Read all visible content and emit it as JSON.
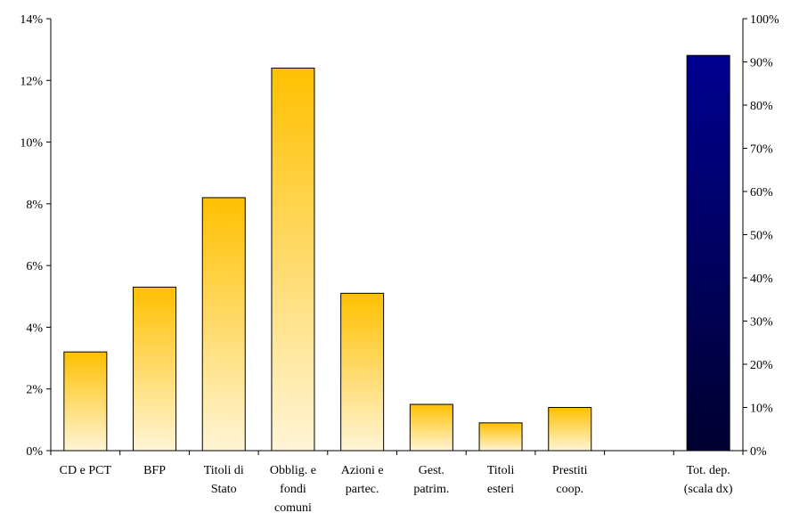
{
  "chart_data": {
    "type": "bar",
    "categories": [
      [
        "CD e PCT"
      ],
      [
        "BFP"
      ],
      [
        "Titoli di",
        "Stato"
      ],
      [
        "Obblig. e",
        "fondi",
        "comuni"
      ],
      [
        "Azioni e",
        "partec."
      ],
      [
        "Gest.",
        "patrim."
      ],
      [
        "Titoli",
        "esteri"
      ],
      [
        "Prestiti",
        "coop."
      ],
      [
        ""
      ],
      [
        "Tot. dep.",
        "(scala dx)"
      ]
    ],
    "series": [
      {
        "axis": "left",
        "color": "#FFC000",
        "gradient_to": "#FFF5D6",
        "values": [
          3.2,
          5.3,
          8.2,
          12.4,
          5.1,
          1.5,
          0.9,
          1.4,
          null,
          null
        ]
      },
      {
        "axis": "right",
        "color": "#000080",
        "gradient_to": "#000033",
        "values": [
          null,
          null,
          null,
          null,
          null,
          null,
          null,
          null,
          null,
          91.5
        ]
      }
    ],
    "y_left": {
      "ylim": [
        0,
        14
      ],
      "ticks": [
        0,
        2,
        4,
        6,
        8,
        10,
        12,
        14
      ],
      "tick_labels": [
        "0%",
        "2%",
        "4%",
        "6%",
        "8%",
        "10%",
        "12%",
        "14%"
      ]
    },
    "y_right": {
      "ylim": [
        0,
        100
      ],
      "ticks": [
        0,
        10,
        20,
        30,
        40,
        50,
        60,
        70,
        80,
        90,
        100
      ],
      "tick_labels": [
        "0%",
        "10%",
        "20%",
        "30%",
        "40%",
        "50%",
        "60%",
        "70%",
        "80%",
        "90%",
        "100%"
      ]
    },
    "grid": false,
    "legend": "none",
    "title": "",
    "xlabel": "",
    "ylabel": ""
  }
}
